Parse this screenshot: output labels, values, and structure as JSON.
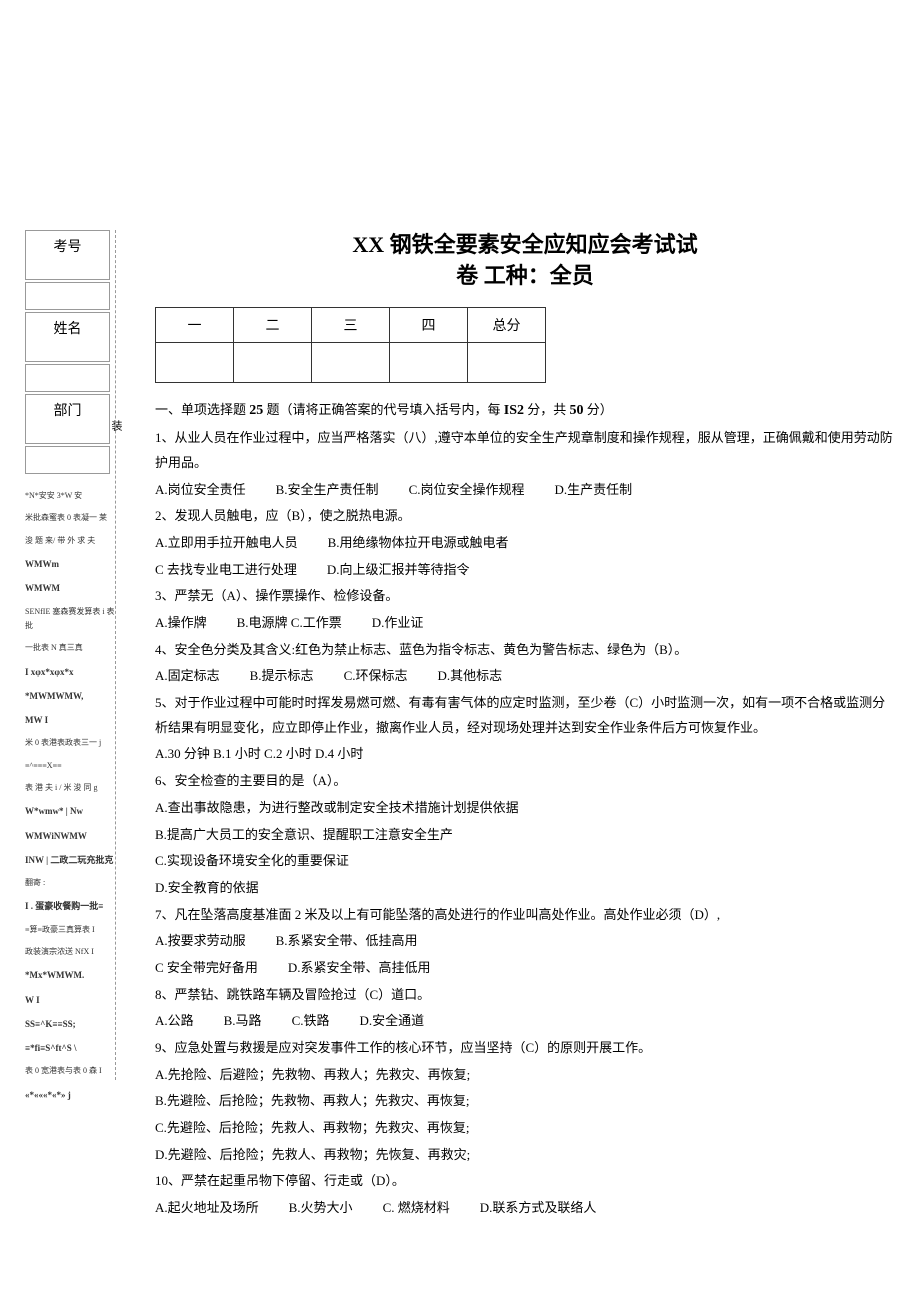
{
  "left_panel": {
    "labels": [
      "考号",
      "姓名",
      "部门"
    ],
    "decorations": [
      {
        "text": "*N*安安 3*W 安",
        "bold": false
      },
      {
        "text": "米批森蜜表 0 表凝一 莱",
        "bold": false
      },
      {
        "text": "浚 题 来/ 带 外 求 夫",
        "bold": false
      },
      {
        "text": "WMWm",
        "bold": true
      },
      {
        "text": "WMWM",
        "bold": true
      },
      {
        "text": "SENfIE 塞森赛发算表 i 表批",
        "bold": false
      },
      {
        "text": "一批表 N 真三真",
        "bold": false
      },
      {
        "text": "I  xφx*xφx*x",
        "bold": true
      },
      {
        "text": "*MWMWMW,",
        "bold": true
      },
      {
        "text": "MW             I",
        "bold": true
      },
      {
        "text": "米 0 表港表政表三一     j",
        "bold": false
      },
      {
        "text": "≡^≡≡≡X≡≡",
        "bold": false
      },
      {
        "text": "表 港 夫 i / 米 浚 同      g",
        "bold": false
      },
      {
        "text": "W*wmw* | Nw",
        "bold": true
      },
      {
        "text": "WMWiNWMW",
        "bold": true
      },
      {
        "text": "INW |  二政二玩充批克",
        "bold": true
      },
      {
        "text": "翻寄 :",
        "bold": false
      },
      {
        "text": "I  . 蛋豪收餐购一批≡",
        "bold": true
      },
      {
        "text": "≡算≡政豪三真算表         I",
        "bold": false
      },
      {
        "text": "政装演宗浓送 NfX      I",
        "bold": false
      },
      {
        "text": "*Mx*WMWM.",
        "bold": true
      },
      {
        "text": "W                  I",
        "bold": true
      },
      {
        "text": "SS≡^K≡≡SS;",
        "bold": true
      },
      {
        "text": "≡*fi≡S^ft^S \\",
        "bold": true
      },
      {
        "text": "表 0 宽港表与表 0 森       I",
        "bold": false
      },
      {
        "text": "«*«««*«*»    j",
        "bold": true
      }
    ]
  },
  "zhuang": "装",
  "title_line1": "XX 钢铁全要素安全应知应会考试试",
  "title_line2": "卷 工种：全员",
  "score_headers": [
    "一",
    "二",
    "三",
    "四",
    "总分"
  ],
  "section1_prefix": "一、单项选择题 ",
  "section1_count": "25",
  "section1_mid": " 题（请将正确答案的代号填入括号内，每 ",
  "section1_perscore": "IS2",
  "section1_mid2": " 分，共 ",
  "section1_total": "50",
  "section1_suffix": " 分）",
  "questions": [
    {
      "q": "1、从业人员在作业过程中，应当严格落实（八）,遵守本单位的安全生产规章制度和操作规程，服从管理，正确佩戴和使用劳动防护用品。",
      "opts": [
        [
          "A.岗位安全责任",
          "B.安全生产责任制",
          "C.岗位安全操作规程",
          "D.生产责任制"
        ]
      ]
    },
    {
      "q": "2、发现人员触电，应（B），使之脱热电源。",
      "opts": [
        [
          "A.立即用手拉开触电人员",
          "B.用绝缘物体拉开电源或触电者"
        ],
        [
          "C 去找专业电工进行处理",
          "D.向上级汇报并等待指令"
        ]
      ]
    },
    {
      "q": "3、严禁无（A）、操作票操作、检修设备。",
      "opts": [
        [
          "A.操作牌",
          "B.电源牌 C.工作票",
          "D.作业证"
        ]
      ]
    },
    {
      "q": "4、安全色分类及其含义:红色为禁止标志、蓝色为指令标志、黄色为警告标志、绿色为（B）。",
      "opts": [
        [
          "A.固定标志",
          "B.提示标志",
          "C.环保标志",
          "D.其他标志"
        ]
      ]
    },
    {
      "q": "5、对于作业过程中可能时时挥发易燃可燃、有毒有害气体的应定时监测，至少卷（C）小时监测一次，如有一项不合格或监测分析结果有明显变化，应立即停止作业，撤离作业人员，经对现场处理并达到安全作业条件后方可恢复作业。",
      "opts": [
        [
          "A.30 分钟 B.1 小时 C.2 小时 D.4 小时"
        ]
      ]
    },
    {
      "q": "6、安全检查的主要目的是（A）。",
      "opts": [
        [
          "A.查出事故隐患，为进行整改或制定安全技术措施计划提供依据"
        ],
        [
          "B.提高广大员工的安全意识、提醒职工注意安全生产"
        ],
        [
          "C.实现设备环境安全化的重要保证"
        ],
        [
          "D.安全教育的依据"
        ]
      ]
    },
    {
      "q": "7、凡在坠落高度基准面 2 米及以上有可能坠落的高处进行的作业叫高处作业。高处作业必须（D）,",
      "opts": [
        [
          "A.按要求劳动服",
          "B.系紧安全带、低挂高用"
        ],
        [
          "C 安全带完好备用",
          "D.系紧安全带、高挂低用"
        ]
      ]
    },
    {
      "q": "8、严禁钻、跳铁路车辆及冒险抢过（C）道口。",
      "opts": [
        [
          "A.公路",
          "B.马路",
          "C.铁路",
          "D.安全通道"
        ]
      ]
    },
    {
      "q": "9、应急处置与救援是应对突发事件工作的核心环节，应当坚持（C）的原则开展工作。",
      "opts": [
        [
          "A.先抢险、后避险；先救物、再救人；先救灾、再恢复;"
        ],
        [
          "B.先避险、后抢险；先救物、再救人；先救灾、再恢复;"
        ],
        [
          "C.先避险、后抢险；先救人、再救物；先救灾、再恢复;"
        ],
        [
          "D.先避险、后抢险；先救人、再救物；先恢复、再救灾;"
        ]
      ]
    },
    {
      "q": "10、严禁在起重吊物下停留、行走或（D）。",
      "opts": [
        [
          "A.起火地址及场所",
          "B.火势大小",
          "C. 燃烧材料",
          "D.联系方式及联络人"
        ]
      ]
    }
  ]
}
